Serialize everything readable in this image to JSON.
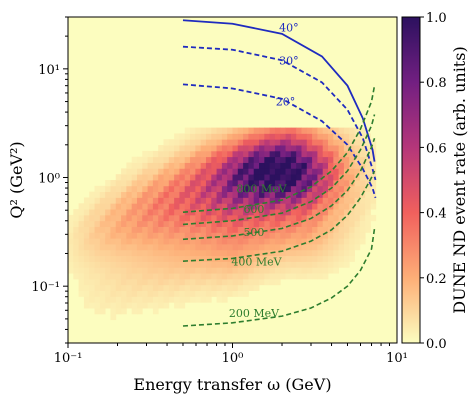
{
  "chart_data": {
    "type": "heatmap",
    "xlabel": "Energy transfer ω (GeV)",
    "ylabel": "Q² (GeV²)",
    "x_scale": "log",
    "y_scale": "log",
    "xlim": [
      0.1,
      10
    ],
    "ylim": [
      0.03,
      30
    ],
    "x_ticks": [
      {
        "value": 0.1,
        "label": "10⁻¹"
      },
      {
        "value": 1,
        "label": "10⁰"
      },
      {
        "value": 10,
        "label": "10¹"
      }
    ],
    "y_ticks": [
      {
        "value": 0.1,
        "label": "10⁻¹"
      },
      {
        "value": 1,
        "label": "10⁰"
      },
      {
        "value": 10,
        "label": "10¹"
      }
    ],
    "colorbar": {
      "label": "DUNE ND event rate (arb. units)",
      "range": [
        0,
        1
      ],
      "ticks": [
        "0.0",
        "0.2",
        "0.4",
        "0.6",
        "0.8",
        "1.0"
      ],
      "colormap": "magma_r",
      "colors": [
        "#fcfdbf",
        "#fdae77",
        "#f1605d",
        "#b5367a",
        "#721f81",
        "#2c115f"
      ]
    },
    "heatmap": {
      "ridge": [
        [
          0.1,
          0.25
        ],
        [
          0.3,
          0.5
        ],
        [
          0.6,
          0.7
        ],
        [
          1.0,
          0.8
        ],
        [
          1.6,
          1.05
        ],
        [
          2.2,
          1.2
        ],
        [
          3.5,
          1.05
        ]
      ],
      "peak": {
        "omega": 1.9,
        "q2": 1.15,
        "rate": 1.0
      },
      "extent": {
        "omega": [
          0.1,
          7.5
        ],
        "q2": [
          0.05,
          3.0
        ]
      }
    },
    "angle_curves": [
      {
        "label": "40°",
        "style": "solid",
        "points": [
          [
            0.5,
            28
          ],
          [
            1.0,
            26
          ],
          [
            2.0,
            21
          ],
          [
            3.5,
            13
          ],
          [
            5.0,
            7
          ],
          [
            6.2,
            3.5
          ],
          [
            7.1,
            1.8
          ],
          [
            7.3,
            1.4
          ]
        ]
      },
      {
        "label": "30°",
        "style": "dashed",
        "points": [
          [
            0.5,
            16
          ],
          [
            1.0,
            15
          ],
          [
            2.0,
            12
          ],
          [
            3.5,
            7.5
          ],
          [
            5.0,
            4.2
          ],
          [
            6.2,
            2.3
          ],
          [
            7.1,
            1.2
          ],
          [
            7.4,
            0.95
          ]
        ]
      },
      {
        "label": "20°",
        "style": "dashed",
        "points": [
          [
            0.5,
            7.2
          ],
          [
            1.0,
            6.6
          ],
          [
            2.0,
            5.3
          ],
          [
            3.5,
            3.3
          ],
          [
            5.0,
            2.0
          ],
          [
            6.2,
            1.2
          ],
          [
            7.1,
            0.8
          ],
          [
            7.4,
            0.65
          ]
        ]
      }
    ],
    "energy_curves": [
      {
        "label": "800 MeV",
        "points": [
          [
            0.5,
            0.48
          ],
          [
            1.0,
            0.52
          ],
          [
            2.0,
            0.62
          ],
          [
            3.0,
            0.82
          ],
          [
            4.0,
            1.15
          ],
          [
            5.0,
            1.7
          ],
          [
            6.0,
            2.8
          ],
          [
            7.0,
            5.0
          ],
          [
            7.3,
            7.0
          ]
        ]
      },
      {
        "label": "600",
        "points": [
          [
            0.5,
            0.37
          ],
          [
            1.0,
            0.4
          ],
          [
            2.0,
            0.47
          ],
          [
            3.0,
            0.6
          ],
          [
            4.0,
            0.8
          ],
          [
            5.0,
            1.15
          ],
          [
            6.0,
            1.8
          ],
          [
            7.0,
            3.0
          ],
          [
            7.3,
            3.8
          ]
        ]
      },
      {
        "label": "500",
        "points": [
          [
            0.5,
            0.27
          ],
          [
            1.0,
            0.29
          ],
          [
            2.0,
            0.34
          ],
          [
            3.0,
            0.42
          ],
          [
            4.0,
            0.55
          ],
          [
            5.0,
            0.76
          ],
          [
            6.0,
            1.15
          ],
          [
            7.0,
            1.9
          ],
          [
            7.3,
            2.3
          ]
        ]
      },
      {
        "label": "400 MeV",
        "points": [
          [
            0.5,
            0.17
          ],
          [
            1.0,
            0.18
          ],
          [
            2.0,
            0.21
          ],
          [
            3.0,
            0.26
          ],
          [
            4.0,
            0.33
          ],
          [
            5.0,
            0.45
          ],
          [
            6.0,
            0.65
          ],
          [
            7.0,
            1.0
          ],
          [
            7.3,
            1.15
          ]
        ]
      },
      {
        "label": "200 MeV",
        "points": [
          [
            0.5,
            0.043
          ],
          [
            1.0,
            0.046
          ],
          [
            2.0,
            0.053
          ],
          [
            3.0,
            0.063
          ],
          [
            4.0,
            0.078
          ],
          [
            5.0,
            0.1
          ],
          [
            6.0,
            0.14
          ],
          [
            7.0,
            0.22
          ],
          [
            7.3,
            0.34
          ]
        ]
      }
    ],
    "angle_label_positions": [
      {
        "label": "40°",
        "at": [
          2.2,
          22
        ]
      },
      {
        "label": "30°",
        "at": [
          2.2,
          11
        ]
      },
      {
        "label": "20°",
        "at": [
          2.1,
          4.6
        ]
      }
    ],
    "energy_label_positions": [
      {
        "label": "800 MeV",
        "at": [
          1.5,
          0.73
        ]
      },
      {
        "label": "600",
        "at": [
          1.35,
          0.47
        ]
      },
      {
        "label": "500",
        "at": [
          1.35,
          0.29
        ]
      },
      {
        "label": "400 MeV",
        "at": [
          1.4,
          0.155
        ]
      },
      {
        "label": "200 MeV",
        "at": [
          1.35,
          0.052
        ]
      }
    ],
    "colors": {
      "angle_curves": "#1f2bbf",
      "energy_curves": "#2e7d2e",
      "background": "#fcfdbf"
    }
  }
}
